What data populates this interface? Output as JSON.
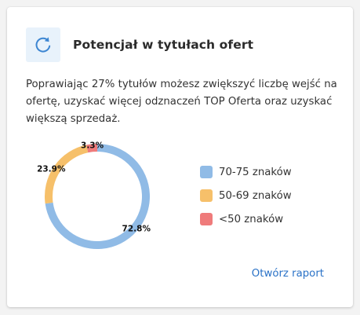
{
  "card": {
    "title": "Potencjał w tytułach ofert",
    "icon": "refresh-icon",
    "description": "Poprawiając 27% tytułów możesz zwiększyć liczbę wejść na ofertę, uzyskać więcej odznaczeń TOP Oferta oraz uzyskać większą sprzedaż.",
    "link_label": "Otwórz raport"
  },
  "colors": {
    "accent": "#2a72c7",
    "icon_bg": "#e8f2fb",
    "icon": "#3d86d2"
  },
  "chart_data": {
    "type": "pie",
    "variant": "donut",
    "slices": [
      {
        "label": "70-75 znaków",
        "value": 72.8,
        "value_label": "72.8%",
        "color": "#90bbe6"
      },
      {
        "label": "50-69 znaków",
        "value": 23.9,
        "value_label": "23.9%",
        "color": "#f6c06a"
      },
      {
        "label": "<50 znaków",
        "value": 3.3,
        "value_label": "3.3%",
        "color": "#ef7b7b"
      }
    ],
    "legend_position": "right"
  }
}
